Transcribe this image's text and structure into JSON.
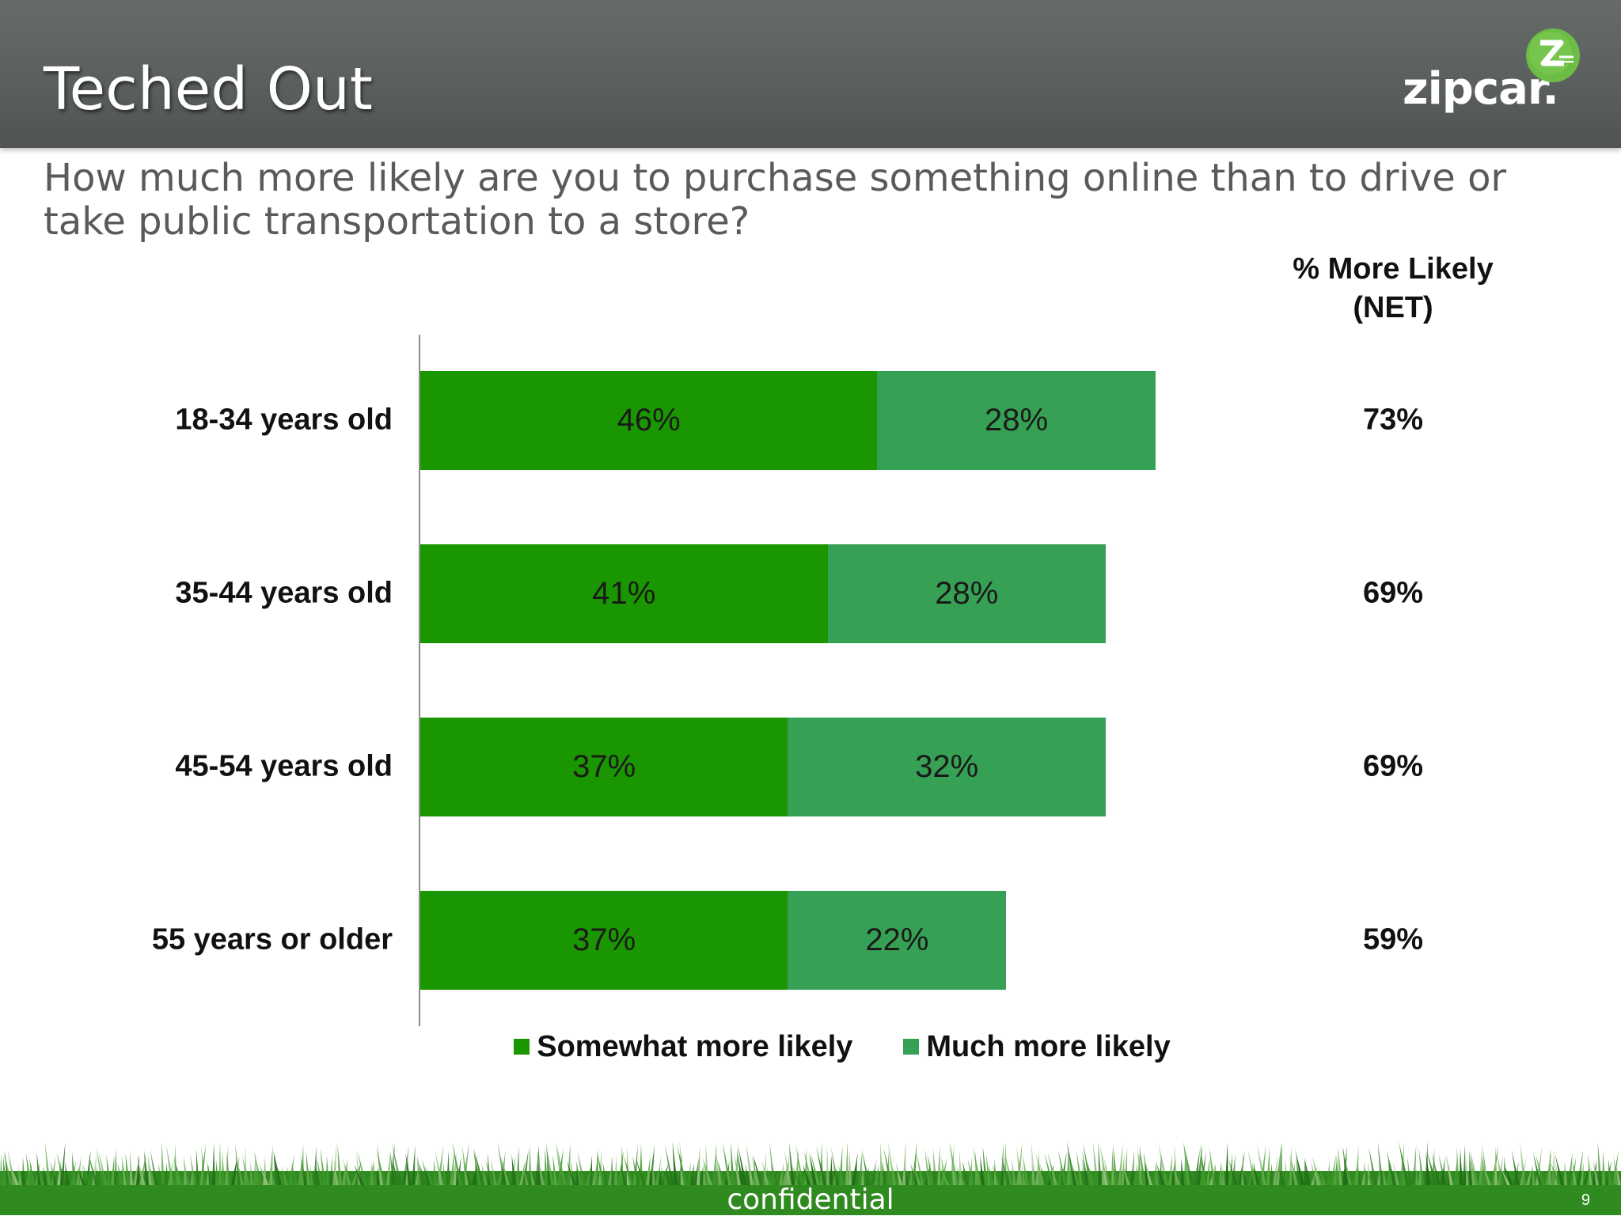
{
  "slide": {
    "title": "Teched Out",
    "logo_text": "zipcar.",
    "question": "How much more likely are you to purchase something online than to drive or take public transportation to a store?",
    "footer": "confidential",
    "page_number": "9"
  },
  "net_header": [
    "% More Likely",
    "(NET)"
  ],
  "colors": {
    "header_bg": "#5b605e",
    "somewhat": "#1a9600",
    "much": "#36a054",
    "logo_green": "#6cbd45",
    "grass": "#2f8a1f"
  },
  "chart_data": {
    "type": "bar",
    "orientation": "horizontal",
    "stacked": true,
    "categories": [
      "18-34 years old",
      "35-44 years old",
      "45-54 years old",
      "55 years or older"
    ],
    "series": [
      {
        "name": "Somewhat more likely",
        "values": [
          46,
          41,
          37,
          37
        ],
        "labels": [
          "46%",
          "41%",
          "37%",
          "37%"
        ]
      },
      {
        "name": "Much more likely",
        "values": [
          28,
          28,
          32,
          22
        ],
        "labels": [
          "28%",
          "28%",
          "32%",
          "22%"
        ]
      }
    ],
    "net_values": [
      "73%",
      "69%",
      "69%",
      "59%"
    ],
    "xlim": [
      0,
      100
    ],
    "grid": false,
    "legend_position": "bottom"
  }
}
